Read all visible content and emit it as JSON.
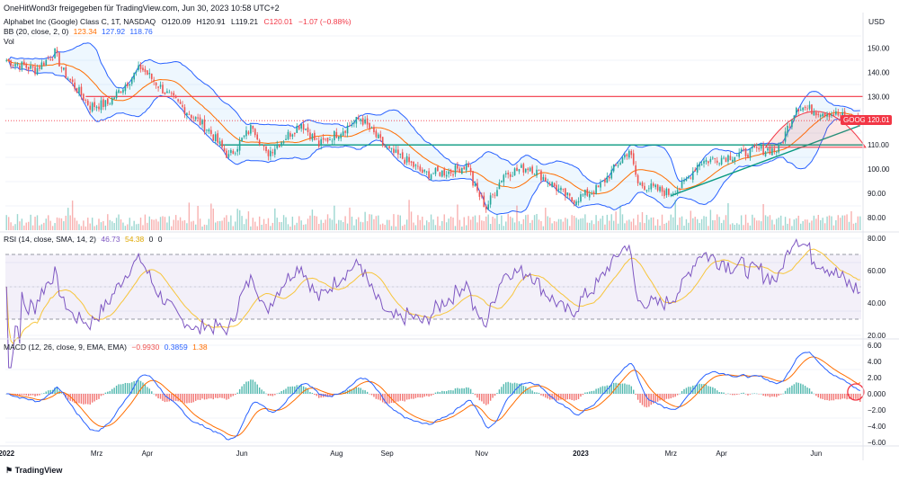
{
  "header": {
    "attribution": "OneHitWond3r freigegeben für TradingView.com, Jun 30, 2023 10:58 UTC+2",
    "symbol": "Alphabet Inc (Google) Class C, 1T, NASDAQ",
    "open": "O120.09",
    "high": "H120.91",
    "low": "L119.21",
    "close": "C120.01",
    "change": "−1.07 (−0.88%)",
    "currency": "USD"
  },
  "legends": {
    "bb": {
      "label": "BB (20, close, 2, 0)",
      "v1": "123.34",
      "v2": "127.92",
      "v3": "118.76"
    },
    "vol": {
      "label": "Vol"
    },
    "rsi": {
      "label": "RSI (14, close, SMA, 14, 2)",
      "v1": "46.73",
      "v2": "54.38",
      "v3": "0",
      "v4": "0"
    },
    "macd": {
      "label": "MACD (12, 26, close, 9, EMA, EMA)",
      "v1": "−0.9930",
      "v2": "0.3859",
      "v3": "1.38"
    }
  },
  "price_label": {
    "ticker": "GOOG",
    "value": "120.01"
  },
  "footer": {
    "brand": "TradingView"
  },
  "colors": {
    "up": "#26a69a",
    "down": "#ef5350",
    "bb_band": "#2962ff",
    "bb_basis": "#ff6d00",
    "rsi": "#7e57c2",
    "rsi_ma": "#f7c53b",
    "macd": "#2962ff",
    "signal": "#ff6d00",
    "resistance": "#f23645",
    "support": "#089981"
  },
  "chart_data": [
    {
      "type": "candlestick",
      "title": "Alphabet Inc (Google) Class C, 1T, NASDAQ",
      "ylabel": "USD",
      "ylim": [
        77,
        155
      ],
      "y_ticks": [
        "150.00",
        "140.00",
        "130.00",
        "120.00",
        "110.00",
        "100.00",
        "90.00",
        "80.00"
      ],
      "x_ticks": [
        "2022",
        "Mrz",
        "Apr",
        "Jun",
        "Aug",
        "Sep",
        "Nov",
        "2023",
        "Mrz",
        "Apr",
        "Jun"
      ],
      "period": "2022-01-03 to 2023-06-29",
      "close_anchors": [
        [
          "2022-01-03",
          145.0
        ],
        [
          "2022-01-20",
          141.0
        ],
        [
          "2022-02-02",
          148.0
        ],
        [
          "2022-02-08",
          140.0
        ],
        [
          "2022-02-24",
          126.0
        ],
        [
          "2022-03-08",
          127.0
        ],
        [
          "2022-03-29",
          142.0
        ],
        [
          "2022-04-14",
          131.0
        ],
        [
          "2022-05-11",
          116.0
        ],
        [
          "2022-05-24",
          105.0
        ],
        [
          "2022-06-08",
          118.0
        ],
        [
          "2022-06-16",
          106.0
        ],
        [
          "2022-07-08",
          119.0
        ],
        [
          "2022-07-20",
          110.0
        ],
        [
          "2022-08-16",
          121.0
        ],
        [
          "2022-09-01",
          108.0
        ],
        [
          "2022-09-13",
          104.0
        ],
        [
          "2022-09-26",
          98.0
        ],
        [
          "2022-10-12",
          99.0
        ],
        [
          "2022-10-24",
          102.0
        ],
        [
          "2022-10-26",
          94.0
        ],
        [
          "2022-11-03",
          84.0
        ],
        [
          "2022-11-15",
          98.0
        ],
        [
          "2022-12-01",
          101.0
        ],
        [
          "2022-12-28",
          87.0
        ],
        [
          "2023-01-13",
          92.0
        ],
        [
          "2023-02-02",
          108.0
        ],
        [
          "2023-02-08",
          94.0
        ],
        [
          "2023-02-28",
          90.0
        ],
        [
          "2023-03-08",
          93.0
        ],
        [
          "2023-03-20",
          103.0
        ],
        [
          "2023-04-05",
          105.0
        ],
        [
          "2023-04-27",
          108.0
        ],
        [
          "2023-05-09",
          108.0
        ],
        [
          "2023-05-19",
          126.0
        ],
        [
          "2023-06-01",
          124.0
        ],
        [
          "2023-06-12",
          123.0
        ],
        [
          "2023-06-29",
          120.01
        ]
      ],
      "lines": {
        "resistance": 130.0,
        "support": 110.0,
        "trendline": [
          [
            "2023-03-01",
            89.0
          ],
          [
            "2023-06-29",
            118.0
          ]
        ],
        "current_price": 120.01
      },
      "indicators": [
        "Bollinger Bands (20, 2)",
        "Volume"
      ]
    },
    {
      "type": "line",
      "title": "RSI (14, close, SMA, 14, 2)",
      "ylim": [
        20,
        80
      ],
      "y_ticks": [
        "80.00",
        "60.00",
        "40.00",
        "20.00"
      ],
      "bands": [
        30,
        70
      ],
      "series": [
        {
          "name": "RSI",
          "last": 46.73
        },
        {
          "name": "RSI SMA",
          "last": 54.38
        }
      ]
    },
    {
      "type": "line",
      "title": "MACD (12, 26, close, 9, EMA, EMA)",
      "ylim": [
        -6,
        6
      ],
      "y_ticks": [
        "6.00",
        "4.00",
        "2.00",
        "0.000",
        "−2.00",
        "−4.00",
        "−6.00"
      ],
      "series": [
        {
          "name": "Histogram",
          "last": -0.993
        },
        {
          "name": "MACD",
          "last": 0.3859
        },
        {
          "name": "Signal",
          "last": 1.38
        }
      ]
    }
  ]
}
